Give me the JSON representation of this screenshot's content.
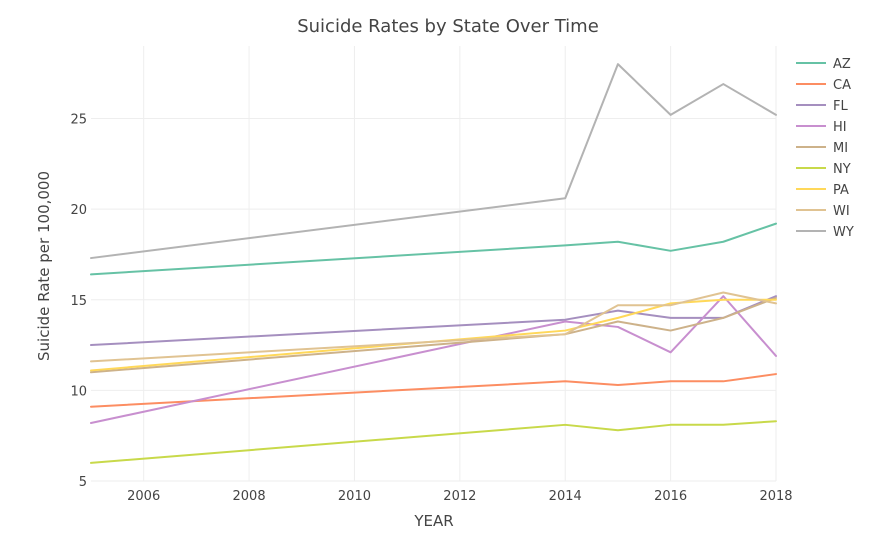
{
  "chart_data": {
    "type": "line",
    "title": "Suicide Rates by State Over Time",
    "xlabel": "YEAR",
    "ylabel": "Suicide Rate per 100,000",
    "xlim": [
      2005,
      2018
    ],
    "ylim": [
      5,
      29
    ],
    "x_ticks": [
      2006,
      2008,
      2010,
      2012,
      2014,
      2016,
      2018
    ],
    "y_ticks": [
      5,
      10,
      15,
      20,
      25
    ],
    "grid": true,
    "legend_position": "right",
    "x": [
      2005,
      2014,
      2015,
      2016,
      2017,
      2018
    ],
    "series": [
      {
        "name": "AZ",
        "color": "#66c2a5",
        "values": [
          16.4,
          18.0,
          18.2,
          17.7,
          18.2,
          19.2
        ]
      },
      {
        "name": "CA",
        "color": "#fc8d62",
        "values": [
          9.1,
          10.5,
          10.3,
          10.5,
          10.5,
          10.9
        ]
      },
      {
        "name": "FL",
        "color": "#a58fbf",
        "values": [
          12.5,
          13.9,
          14.4,
          14.0,
          14.0,
          15.2
        ]
      },
      {
        "name": "HI",
        "color": "#c88fcf",
        "values": [
          8.2,
          13.8,
          13.5,
          12.1,
          15.2,
          11.9
        ]
      },
      {
        "name": "MI",
        "color": "#cdb28a",
        "values": [
          11.0,
          13.1,
          13.8,
          13.3,
          14.0,
          15.1
        ]
      },
      {
        "name": "NY",
        "color": "#c8d94a",
        "values": [
          6.0,
          8.1,
          7.8,
          8.1,
          8.1,
          8.3
        ]
      },
      {
        "name": "PA",
        "color": "#ffd859",
        "values": [
          11.1,
          13.3,
          14.0,
          14.8,
          15.0,
          15.0
        ]
      },
      {
        "name": "WI",
        "color": "#e0c392",
        "values": [
          11.6,
          13.1,
          14.7,
          14.7,
          15.4,
          14.8
        ]
      },
      {
        "name": "WY",
        "color": "#b3b3b3",
        "values": [
          17.3,
          20.6,
          28.0,
          25.2,
          26.9,
          25.2
        ]
      }
    ]
  }
}
